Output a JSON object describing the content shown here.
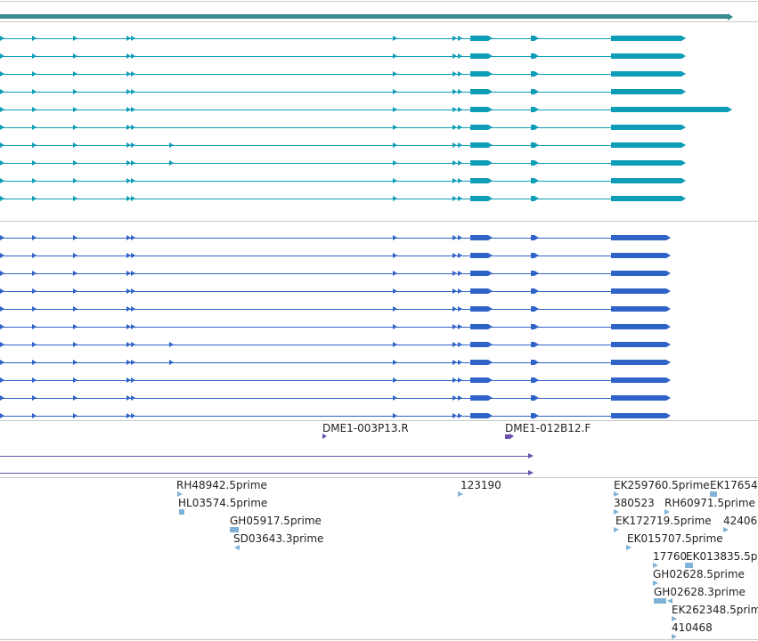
{
  "colors": {
    "gene": "#3a8a8f",
    "transcript_cyan": "#0e9db6",
    "transcript_blue": "#2f63c7",
    "probe": "#6a4fb0",
    "est": "#7fb2d6",
    "separator": "#c8c8c8"
  },
  "tracks": {
    "gene": {
      "count": 1
    },
    "transcripts_a": {
      "count": 10,
      "extended_row": 5,
      "extra_intron_rows": [
        7,
        8
      ]
    },
    "transcripts_b": {
      "count": 11,
      "extra_intron_rows": [
        7,
        8
      ]
    },
    "probes": {
      "labels": [
        "DME1-003P13.R",
        "DME1-012B12.F"
      ],
      "line_count": 2
    },
    "ests": {
      "labels": [
        "RH48942.5prime",
        "HL03574.5prime",
        "GH05917.5prime",
        "SD03643.3prime",
        "123190",
        "EK259760.5prime",
        "EK17654",
        "380523",
        "RH60971.5prime",
        "EK172719.5prime",
        "42406",
        "EK015707.5prime",
        "17760",
        "EK013835.5p",
        "GH02628.5prime",
        "GH02628.3prime",
        "EK262348.5prime",
        "410468"
      ]
    }
  }
}
